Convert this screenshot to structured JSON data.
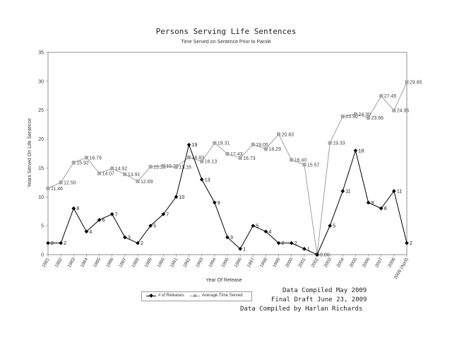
{
  "chart_data": {
    "type": "line",
    "title": "Persons Serving Life Sentences",
    "subtitle": "Time Served on Sentence Prior to Parole",
    "xlabel": "Year Of Release",
    "ylabel": "Years Served On Life Sentence",
    "ylim": [
      0,
      35
    ],
    "yticks": [
      0,
      5,
      10,
      15,
      20,
      25,
      30,
      35
    ],
    "grid": false,
    "legend_position": "bottom-left",
    "categories": [
      "1981",
      "1982",
      "1983",
      "1984",
      "1985",
      "1986",
      "1987",
      "1988",
      "1989",
      "1990",
      "1991",
      "1992",
      "1993",
      "1994",
      "1995",
      "1996",
      "1997",
      "1998",
      "1999",
      "2000",
      "2001",
      "2002",
      "2003",
      "2004",
      "2005",
      "2006",
      "2007",
      "2008",
      "2009 (April)"
    ],
    "series": [
      {
        "name": "# of Releases",
        "color": "#000000",
        "marker": "diamond",
        "values": [
          2,
          2,
          8,
          4,
          6,
          7,
          3,
          2,
          5,
          7,
          10,
          19,
          13,
          9,
          3,
          1,
          5,
          4,
          2,
          2,
          1,
          0,
          5,
          11,
          18,
          9,
          8,
          11,
          2
        ],
        "labels": [
          "2",
          "2",
          "8",
          "4",
          "6",
          "7",
          "3",
          "2",
          "5",
          "7",
          "10",
          "19",
          "13",
          "9",
          "3",
          "1",
          "5",
          "4",
          "2",
          "2",
          "1",
          "",
          "5",
          "11",
          "18",
          "9",
          "8",
          "11",
          "2"
        ]
      },
      {
        "name": "Average Time Served",
        "color": "#a0a0a0",
        "marker": "square",
        "values": [
          11.46,
          12.5,
          15.92,
          16.79,
          14.07,
          14.92,
          13.91,
          12.69,
          15.2,
          15.36,
          15.16,
          16.83,
          16.13,
          19.31,
          17.43,
          16.73,
          19.05,
          18.29,
          20.83,
          16.4,
          15.57,
          0.0,
          19.33,
          23.9,
          24.3,
          23.66,
          27.45,
          24.95,
          29.85
        ],
        "labels": [
          "11.46",
          "12.50",
          "15.92",
          "16.79",
          "14.07",
          "14.92",
          "13.91",
          "12.69",
          "15.20",
          "15.36",
          "15.16",
          "16.83",
          "16.13",
          "19.31",
          "17.43",
          "16.73",
          "19.05",
          "18.29",
          "20.83",
          "16.40",
          "15.57",
          "0.00",
          "19.33",
          "23.90",
          "24.30",
          "23.66",
          "27.45",
          "24.95",
          "29.85"
        ]
      }
    ]
  },
  "credits": {
    "line1": "Data Compiled May 2009",
    "line2": "Final Draft June 23, 2009",
    "line3": "Data Compiled by Harlan Richards"
  }
}
